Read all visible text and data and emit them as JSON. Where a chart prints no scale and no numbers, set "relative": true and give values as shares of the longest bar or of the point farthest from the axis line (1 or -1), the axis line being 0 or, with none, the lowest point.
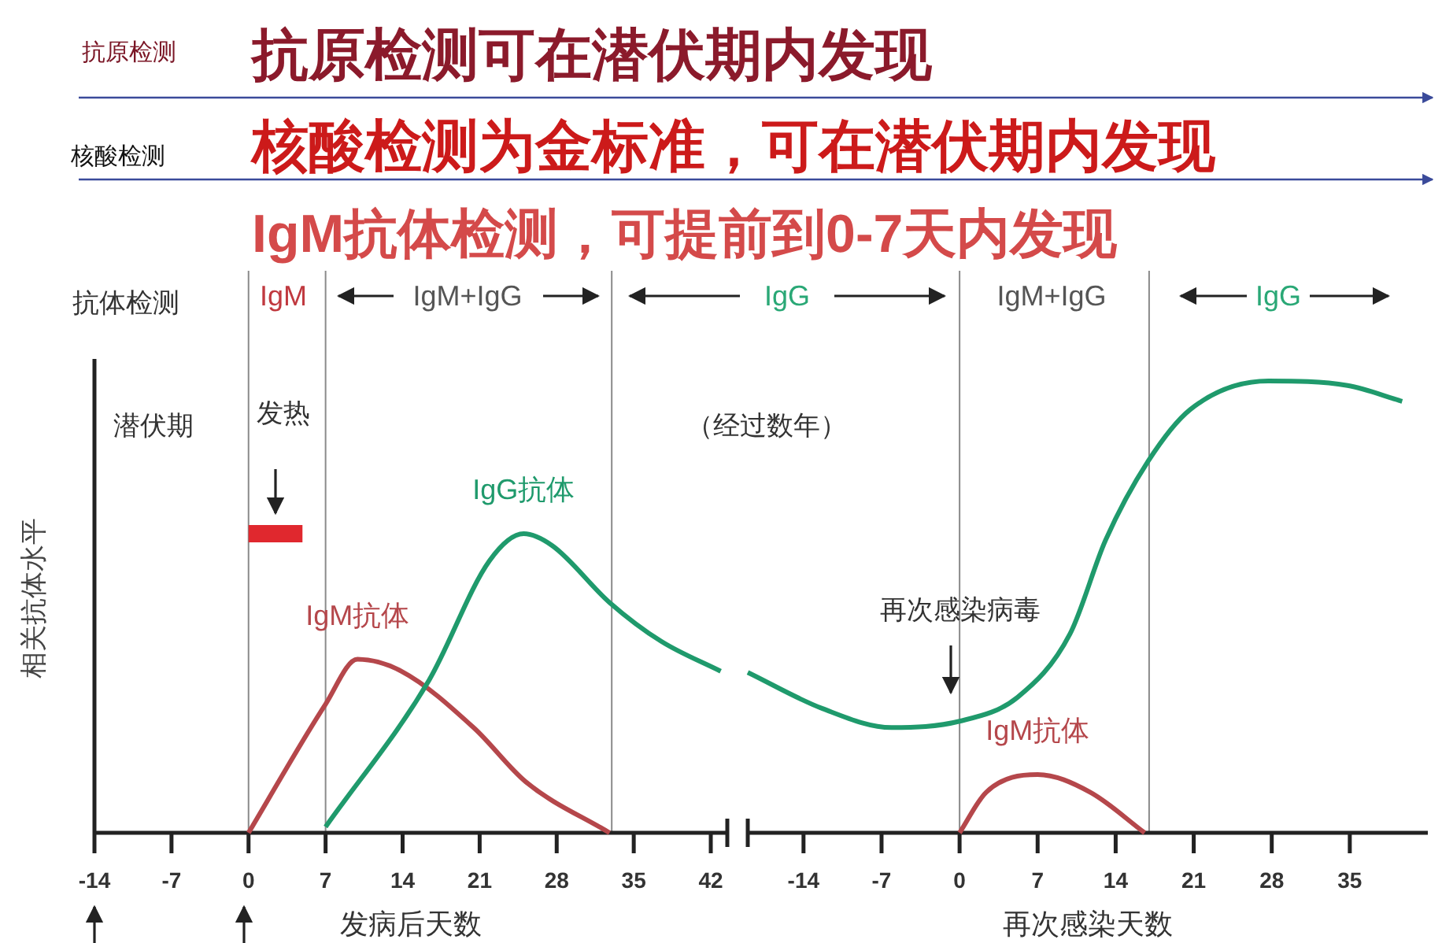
{
  "chart_data": [
    {
      "type": "other",
      "annotations": [
        "抗原检测",
        "抗原检测可在潜伏期内发现",
        "核酸检测",
        "核酸检测为金标准，可在潜伏期内发现",
        "IgM抗体检测，可提前到0-7天内发现"
      ]
    },
    {
      "type": "line",
      "relative": true,
      "xlabel": "发病后天数",
      "ylabel": "相关抗体水平",
      "xlim": [
        -14,
        43.5
      ],
      "xticks": [
        -14,
        -7,
        0,
        7,
        14,
        21,
        28,
        35,
        42
      ],
      "line_style": "solid",
      "ref_lines": [
        {
          "axis": "x",
          "value": 0,
          "color": "#8a8a8a"
        },
        {
          "axis": "x",
          "value": 7,
          "color": "#8a8a8a"
        },
        {
          "axis": "x",
          "value": 33,
          "color": "#8a8a8a"
        }
      ],
      "annotations": [
        "抗体检测",
        "潜伏期",
        "发热",
        "IgM",
        "IgM+IgG"
      ],
      "series": [
        {
          "name": "IgM抗体",
          "color": "#b5474b",
          "x": [
            0,
            7,
            9.9,
            13.9,
            20.5,
            25.2,
            32.8
          ],
          "values": [
            0,
            0.43,
            0.58,
            0.54,
            0.35,
            0.17,
            0
          ]
        },
        {
          "name": "IgG抗体",
          "color": "#1f9a6c",
          "x": [
            7,
            16.4,
            21.9,
            25,
            27.6,
            32.8,
            37.5,
            42.9
          ],
          "values": [
            0.02,
            0.51,
            0.91,
            1,
            0.96,
            0.77,
            0.64,
            0.54
          ]
        },
        {
          "color": "#e0282e",
          "x": [
            0,
            4.9
          ],
          "values": [
            1,
            1
          ]
        }
      ]
    },
    {
      "type": "line",
      "relative": true,
      "xlabel": "再次感染天数",
      "xlim": [
        -19,
        42
      ],
      "xticks": [
        -14,
        -7,
        0,
        7,
        14,
        21,
        28,
        35
      ],
      "line_style": "solid",
      "ref_lines": [
        {
          "axis": "x",
          "value": 0,
          "color": "#8a8a8a"
        },
        {
          "axis": "x",
          "value": 17,
          "color": "#8a8a8a"
        }
      ],
      "annotations": [
        "IgG",
        "IgM+IgG",
        "IgG",
        "（经过数年）",
        "再次感染病毒"
      ],
      "series": [
        {
          "color": "#1f9a6c",
          "x": [
            -19,
            -12.3,
            -6.1,
            0,
            5.2,
            9.9,
            13.1,
            16.9,
            20.7,
            27.7,
            34.8,
            39.7
          ],
          "values": [
            0.355,
            0.275,
            0.233,
            0.247,
            0.3,
            0.44,
            0.648,
            0.822,
            0.937,
            1,
            0.99,
            0.955
          ]
        },
        {
          "name": "IgM抗体",
          "color": "#b5474b",
          "x": [
            0,
            2.4,
            7,
            11.7,
            16.6
          ],
          "values": [
            0,
            0.09,
            0.129,
            0.09,
            0
          ]
        }
      ]
    }
  ]
}
